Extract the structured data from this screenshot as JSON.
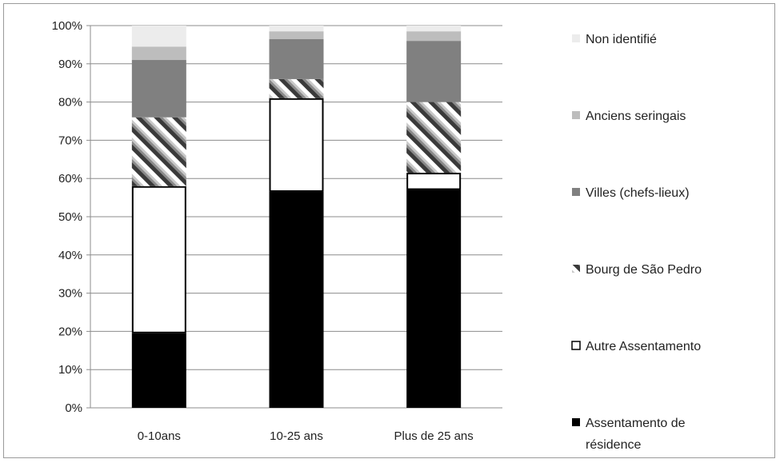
{
  "chart_data": {
    "type": "bar",
    "stacked": true,
    "categories": [
      "0-10ans",
      "10-25 ans",
      "Plus de 25 ans"
    ],
    "yticks": [
      "0%",
      "10%",
      "20%",
      "30%",
      "40%",
      "50%",
      "60%",
      "70%",
      "80%",
      "90%",
      "100%"
    ],
    "ylim": [
      0,
      100
    ],
    "grid": true,
    "legend_position": "right",
    "series": [
      {
        "name": "Assentamento de résidence",
        "lines": [
          "Assentamento de",
          "résidence"
        ],
        "color": "#000000",
        "pattern": "solid",
        "values": [
          19.5,
          56.5,
          57
        ]
      },
      {
        "name": "Autre Assentamento",
        "lines": [
          "Autre Assentamento"
        ],
        "color": "#ffffff",
        "pattern": "outline",
        "values": [
          38.5,
          24.5,
          4.5
        ]
      },
      {
        "name": "Bourg de São Pedro",
        "lines": [
          "Bourg de São Pedro"
        ],
        "color": "#bdbdbd",
        "pattern": "diagonal-stripes",
        "values": [
          18,
          5,
          18.5
        ]
      },
      {
        "name": "Villes (chefs-lieux)",
        "lines": [
          "Villes (chefs-lieux)"
        ],
        "color": "#808080",
        "pattern": "solid",
        "values": [
          15,
          10.5,
          16
        ]
      },
      {
        "name": "Anciens seringais",
        "lines": [
          "Anciens seringais"
        ],
        "color": "#bdbdbd",
        "pattern": "solid",
        "values": [
          3.5,
          2,
          2.5
        ]
      },
      {
        "name": "Non identifié",
        "lines": [
          "Non identifié"
        ],
        "color": "#ececec",
        "pattern": "solid",
        "values": [
          5.5,
          1.5,
          1.5
        ]
      }
    ]
  }
}
